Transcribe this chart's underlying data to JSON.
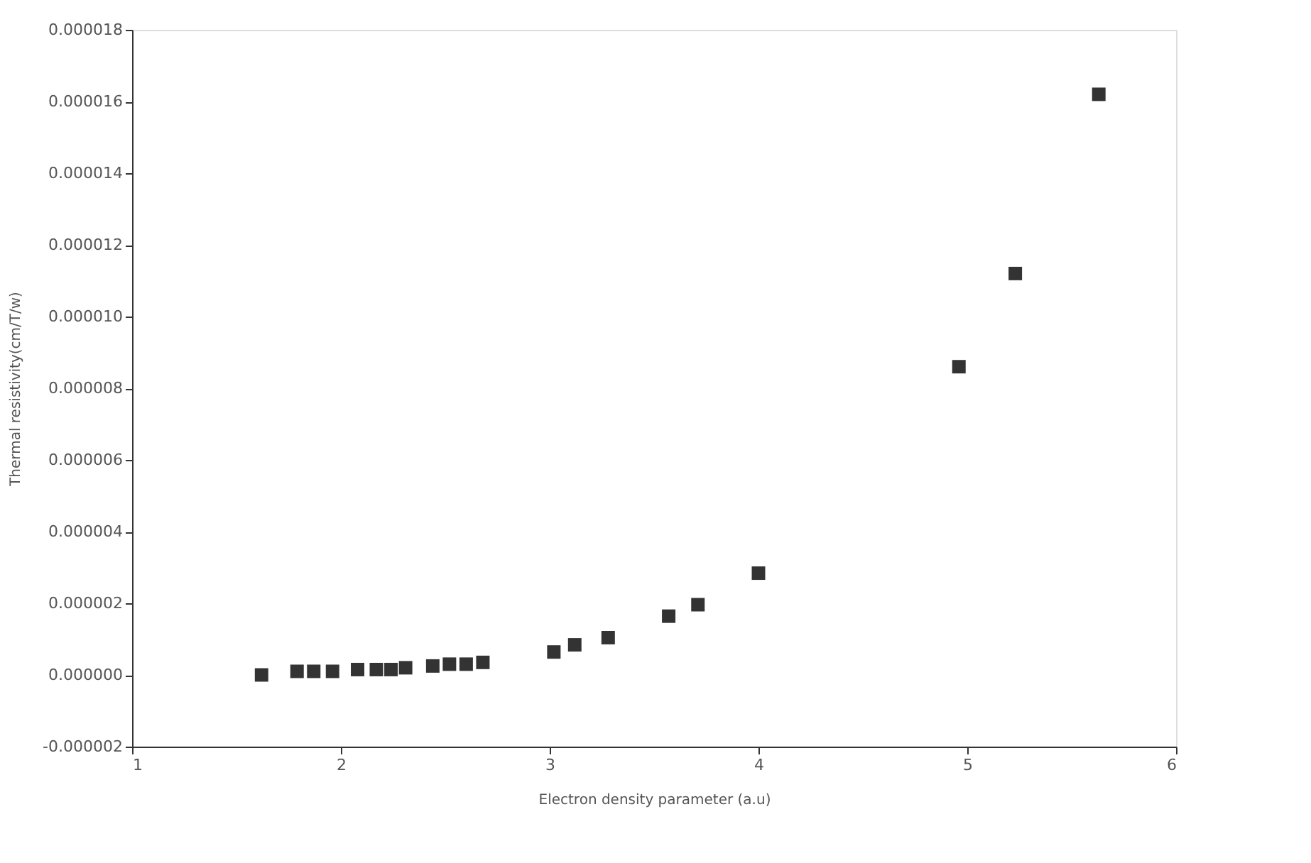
{
  "chart_data": {
    "type": "scatter",
    "xlabel": "Electron density parameter (a.u)",
    "ylabel": "Thermal resistivity(cm/T/w)",
    "marker": "square",
    "grid": false,
    "series": [
      {
        "color": "#333333",
        "x": [
          1.62,
          1.79,
          1.87,
          1.96,
          2.08,
          2.17,
          2.24,
          2.31,
          2.44,
          2.52,
          2.6,
          2.68,
          3.02,
          3.12,
          3.28,
          3.57,
          3.71,
          4.0,
          4.96,
          5.23,
          5.63
        ],
        "values": [
          0.0,
          1e-07,
          1e-07,
          1e-07,
          1.5e-07,
          1.5e-07,
          1.5e-07,
          2e-07,
          2.5e-07,
          3e-07,
          3e-07,
          3.5e-07,
          6.4e-07,
          8.4e-07,
          1.04e-06,
          1.64e-06,
          1.96e-06,
          2.84e-06,
          8.6e-06,
          1.12e-05,
          1.62e-05
        ]
      }
    ],
    "xlim": [
      1,
      6
    ],
    "xticks": [
      1,
      2,
      3,
      4,
      5,
      6
    ],
    "ylim": [
      -2e-06,
      1.8e-05
    ],
    "yticks": [
      {
        "value": -2e-06,
        "label": "-0.000002"
      },
      {
        "value": 0.0,
        "label": "0.000000"
      },
      {
        "value": 2e-06,
        "label": "0.000002"
      },
      {
        "value": 4e-06,
        "label": "0.000004"
      },
      {
        "value": 6e-06,
        "label": "0.000006"
      },
      {
        "value": 8e-06,
        "label": "0.000008"
      },
      {
        "value": 1e-05,
        "label": "0.000010"
      },
      {
        "value": 1.2e-05,
        "label": "0.000012"
      },
      {
        "value": 1.4e-05,
        "label": "0.000014"
      },
      {
        "value": 1.6e-05,
        "label": "0.000016"
      },
      {
        "value": 1.8e-05,
        "label": "0.000018"
      }
    ]
  }
}
